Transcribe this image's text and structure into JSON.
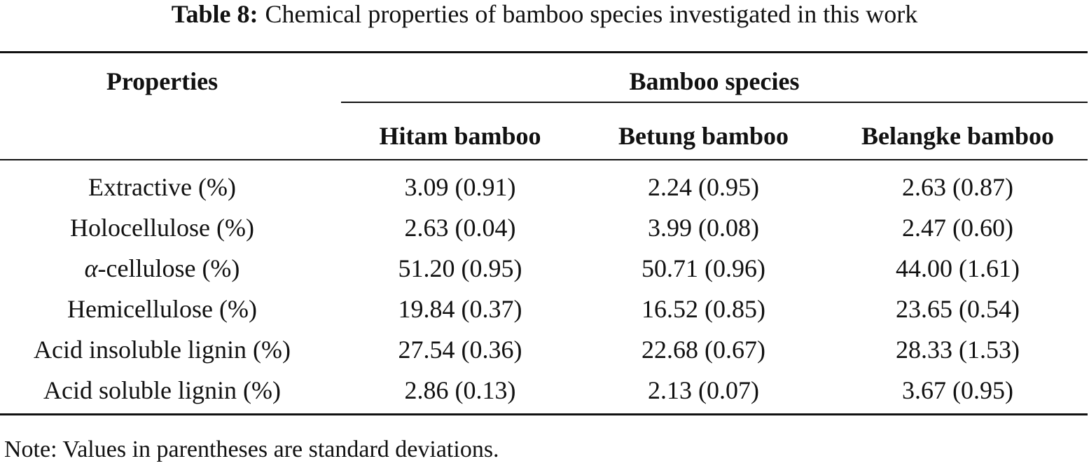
{
  "caption": {
    "label": "Table 8:",
    "text": "Chemical properties of bamboo species investigated in this work"
  },
  "header": {
    "properties": "Properties",
    "group": "Bamboo species",
    "species": [
      "Hitam bamboo",
      "Betung bamboo",
      "Belangke bamboo"
    ]
  },
  "rows": [
    {
      "property": "Extractive (%)",
      "values": [
        "3.09 (0.91)",
        "2.24 (0.95)",
        "2.63 (0.87)"
      ]
    },
    {
      "property": "Holocellulose (%)",
      "values": [
        "2.63 (0.04)",
        "3.99 (0.08)",
        "2.47 (0.60)"
      ]
    },
    {
      "property_symbol": "α",
      "property_rest": "-cellulose (%)",
      "values": [
        "51.20 (0.95)",
        "50.71 (0.96)",
        "44.00 (1.61)"
      ]
    },
    {
      "property": "Hemicellulose (%)",
      "values": [
        "19.84 (0.37)",
        "16.52 (0.85)",
        "23.65 (0.54)"
      ]
    },
    {
      "property": "Acid insoluble lignin (%)",
      "values": [
        "27.54 (0.36)",
        "22.68 (0.67)",
        "28.33 (1.53)"
      ]
    },
    {
      "property": "Acid soluble lignin (%)",
      "values": [
        "2.86 (0.13)",
        "2.13 (0.07)",
        "3.67 (0.95)"
      ]
    }
  ],
  "note": "Note: Values in parentheses are standard deviations."
}
